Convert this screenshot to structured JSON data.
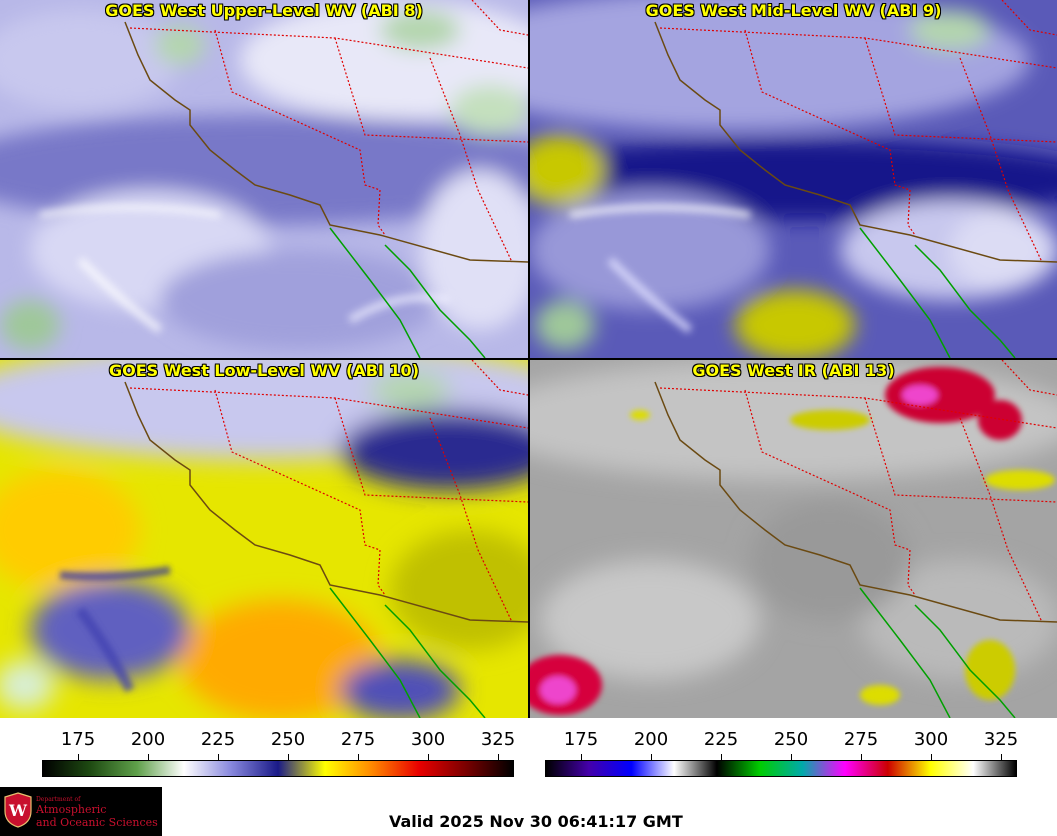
{
  "panels": [
    {
      "id": "upper",
      "title": "GOES West Upper-Level WV (ABI 8)"
    },
    {
      "id": "mid",
      "title": "GOES West Mid-Level WV (ABI 9)"
    },
    {
      "id": "low",
      "title": "GOES West Low-Level WV (ABI 10)"
    },
    {
      "id": "ir",
      "title": "GOES West IR (ABI 13)"
    }
  ],
  "wv_colorbar": {
    "ticks": [
      "175",
      "200",
      "225",
      "250",
      "275",
      "300",
      "325"
    ],
    "colors": [
      "#000000",
      "#1e4a12",
      "#5fa04a",
      "#ffffff",
      "#8888dd",
      "#1a1a88",
      "#ffff00",
      "#ff8800",
      "#e80000",
      "#7a0000",
      "#000000"
    ]
  },
  "ir_colorbar": {
    "ticks": [
      "175",
      "200",
      "225",
      "250",
      "275",
      "300",
      "325"
    ],
    "colors": [
      "#000000",
      "#4400aa",
      "#0000ff",
      "#ffffff",
      "#000000",
      "#00cc00",
      "#00aaaa",
      "#ff00ff",
      "#cc0000",
      "#ffff00",
      "#ffffff",
      "#000000"
    ]
  },
  "logo": {
    "line1": "Department of",
    "line2": "Atmospheric",
    "line3": "and Oceanic Sciences",
    "seal": "W"
  },
  "valid_time": "Valid 2025 Nov 30 06:41:17 GMT",
  "colors": {
    "state_border": "#e00000",
    "coastline": "#6b4a12",
    "mexico_coast": "#00a000"
  }
}
